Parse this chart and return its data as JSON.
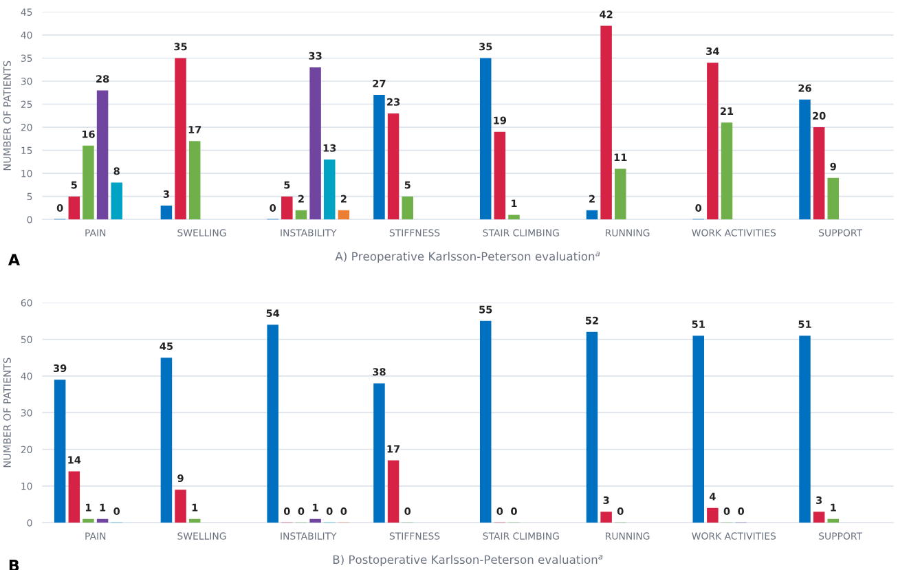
{
  "chart_data": [
    {
      "type": "bar",
      "categories": [
        "PAIN",
        "SWELLING",
        "INSTABILITY",
        "STIFFNESS",
        "STAIR CLIMBING",
        "RUNNING",
        "WORK ACTIVITIES",
        "SUPPORT"
      ],
      "series": [
        {
          "color": "#0070c0",
          "values": [
            0,
            3,
            0,
            27,
            35,
            2,
            0,
            26
          ]
        },
        {
          "color": "#d62244",
          "values": [
            5,
            35,
            5,
            23,
            19,
            42,
            34,
            20
          ]
        },
        {
          "color": "#70b04a",
          "values": [
            16,
            17,
            2,
            5,
            1,
            11,
            21,
            9
          ]
        },
        {
          "color": "#7045a0",
          "values": [
            28,
            null,
            33,
            null,
            null,
            null,
            null,
            null
          ]
        },
        {
          "color": "#00a3c4",
          "values": [
            8,
            null,
            13,
            null,
            null,
            null,
            null,
            null
          ]
        },
        {
          "color": "#ed7d31",
          "values": [
            null,
            null,
            2,
            null,
            null,
            null,
            null,
            null
          ]
        }
      ],
      "ylabel": "NUMBER OF PATIENTS",
      "xlabel": "A) Preoperative Karlsson-Peterson evaluation$^{a}$",
      "annotations": [
        "A"
      ],
      "ylim": [
        0,
        45
      ],
      "yticks": [
        0,
        5,
        10,
        15,
        20,
        25,
        30,
        35,
        40,
        45
      ],
      "grid": "y",
      "data_labels": true,
      "legend": false
    },
    {
      "type": "bar",
      "categories": [
        "PAIN",
        "SWELLING",
        "INSTABILITY",
        "STIFFNESS",
        "STAIR CLIMBING",
        "RUNNING",
        "WORK ACTIVITIES",
        "SUPPORT"
      ],
      "series": [
        {
          "color": "#0070c0",
          "values": [
            39,
            45,
            54,
            38,
            55,
            52,
            51,
            51
          ]
        },
        {
          "color": "#d62244",
          "values": [
            14,
            9,
            0,
            17,
            0,
            3,
            4,
            3
          ]
        },
        {
          "color": "#70b04a",
          "values": [
            1,
            1,
            0,
            0,
            0,
            0,
            0,
            1
          ]
        },
        {
          "color": "#7045a0",
          "values": [
            1,
            null,
            1,
            null,
            null,
            null,
            0,
            null
          ]
        },
        {
          "color": "#00a3c4",
          "values": [
            0,
            null,
            0,
            null,
            null,
            null,
            null,
            null
          ]
        },
        {
          "color": "#ed7d31",
          "values": [
            null,
            null,
            0,
            null,
            null,
            null,
            null,
            null
          ]
        }
      ],
      "ylabel": "NUMBER OF PATIENTS",
      "xlabel": "B) Postoperative Karlsson-Peterson evaluation$^{a}$",
      "annotations": [
        "B"
      ],
      "ylim": [
        0,
        60
      ],
      "yticks": [
        0,
        10,
        20,
        30,
        40,
        50,
        60
      ],
      "grid": "y",
      "data_labels": true,
      "legend": false
    }
  ]
}
